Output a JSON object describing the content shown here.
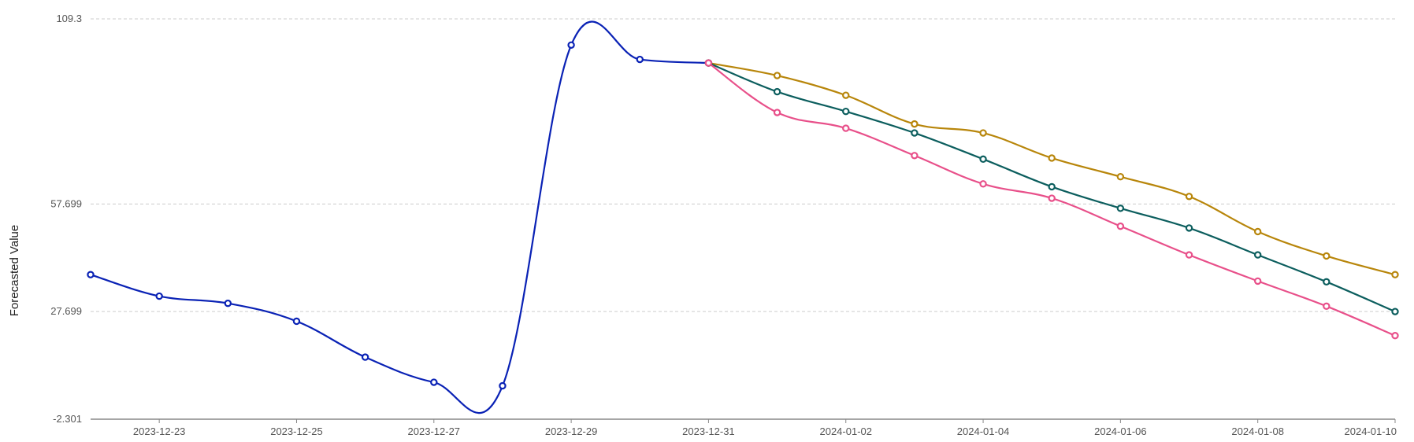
{
  "chart_data": {
    "type": "line",
    "title": "",
    "xlabel": "",
    "ylabel": "Forecasted Value",
    "x_range": [
      "2023-12-22",
      "2024-01-10"
    ],
    "ylim": [
      -2.301,
      109.3
    ],
    "y_ticks": [
      "109.3",
      "57.699",
      "27.699",
      "-2.301"
    ],
    "x_ticks": [
      "2023-12-23",
      "2023-12-25",
      "2023-12-27",
      "2023-12-29",
      "2023-12-31",
      "2024-01-02",
      "2024-01-04",
      "2024-01-06",
      "2024-01-08",
      "2024-01-10"
    ],
    "grid": "horizontal dashed",
    "legend": "none",
    "series": [
      {
        "color": "#0a22b5",
        "x": [
          "2023-12-22",
          "2023-12-23",
          "2023-12-24",
          "2023-12-25",
          "2023-12-26",
          "2023-12-27",
          "2023-12-28",
          "2023-12-29",
          "2023-12-30",
          "2023-12-31"
        ],
        "values": [
          38.0,
          32.0,
          30.0,
          25.0,
          15.0,
          8.0,
          7.0,
          102.0,
          98.0,
          97.0
        ]
      },
      {
        "color": "#b8860b",
        "x": [
          "2023-12-31",
          "2024-01-01",
          "2024-01-02",
          "2024-01-03",
          "2024-01-04",
          "2024-01-05",
          "2024-01-06",
          "2024-01-07",
          "2024-01-08",
          "2024-01-09",
          "2024-01-10"
        ],
        "values": [
          97.0,
          93.5,
          88.0,
          80.0,
          77.5,
          70.5,
          65.3,
          59.8,
          50.0,
          43.2,
          38.0
        ]
      },
      {
        "color": "#0c5e5e",
        "x": [
          "2023-12-31",
          "2024-01-01",
          "2024-01-02",
          "2024-01-03",
          "2024-01-04",
          "2024-01-05",
          "2024-01-06",
          "2024-01-07",
          "2024-01-08",
          "2024-01-09",
          "2024-01-10"
        ],
        "values": [
          97.0,
          89.0,
          83.5,
          77.5,
          70.2,
          62.5,
          56.5,
          51.0,
          43.5,
          36.0,
          27.7
        ]
      },
      {
        "color": "#e8508a",
        "x": [
          "2023-12-31",
          "2024-01-01",
          "2024-01-02",
          "2024-01-03",
          "2024-01-04",
          "2024-01-05",
          "2024-01-06",
          "2024-01-07",
          "2024-01-08",
          "2024-01-09",
          "2024-01-10"
        ],
        "values": [
          97.0,
          83.2,
          78.8,
          71.2,
          63.3,
          59.3,
          51.5,
          43.5,
          36.2,
          29.2,
          21.0
        ]
      }
    ]
  }
}
